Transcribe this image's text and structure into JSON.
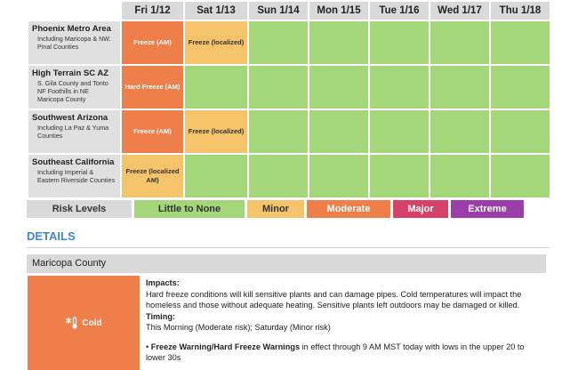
{
  "days": [
    "Fri 1/12",
    "Sat 1/13",
    "Sun 1/14",
    "Mon 1/15",
    "Tue 1/16",
    "Wed 1/17",
    "Thu 1/18"
  ],
  "regions": [
    {
      "name": "Phoenix Metro Area",
      "sub": "Including Maricopa & NW. Pinal Counties",
      "cells": [
        {
          "text": "Freeze (AM)",
          "level": "moderate"
        },
        {
          "text": "Freeze (localized)",
          "level": "minor"
        },
        {
          "text": "",
          "level": "none"
        },
        {
          "text": "",
          "level": "none"
        },
        {
          "text": "",
          "level": "none"
        },
        {
          "text": "",
          "level": "none"
        },
        {
          "text": "",
          "level": "none"
        }
      ]
    },
    {
      "name": "High Terrain SC AZ",
      "sub": "S. Gila County and Tonto NF Foothills in NE Maricopa County",
      "cells": [
        {
          "text": "Hard Freeze (AM)",
          "level": "moderate"
        },
        {
          "text": "",
          "level": "none"
        },
        {
          "text": "",
          "level": "none"
        },
        {
          "text": "",
          "level": "none"
        },
        {
          "text": "",
          "level": "none"
        },
        {
          "text": "",
          "level": "none"
        },
        {
          "text": "",
          "level": "none"
        }
      ]
    },
    {
      "name": "Southwest Arizona",
      "sub": "Including La Paz & Yuma Counties",
      "cells": [
        {
          "text": "Freeze (AM)",
          "level": "moderate"
        },
        {
          "text": "Freeze (localized)",
          "level": "minor"
        },
        {
          "text": "",
          "level": "none"
        },
        {
          "text": "",
          "level": "none"
        },
        {
          "text": "",
          "level": "none"
        },
        {
          "text": "",
          "level": "none"
        },
        {
          "text": "",
          "level": "none"
        }
      ]
    },
    {
      "name": "Southeast California",
      "sub": "Including Imperial & Eastern Riverside Counties",
      "cells": [
        {
          "text": "Freeze (localized AM)",
          "level": "minor"
        },
        {
          "text": "",
          "level": "none"
        },
        {
          "text": "",
          "level": "none"
        },
        {
          "text": "",
          "level": "none"
        },
        {
          "text": "",
          "level": "none"
        },
        {
          "text": "",
          "level": "none"
        },
        {
          "text": "",
          "level": "none"
        }
      ]
    }
  ],
  "legend": {
    "label": "Risk Levels",
    "items": [
      {
        "key": "none",
        "label": "Little to None",
        "color": "#a3d77a"
      },
      {
        "key": "minor",
        "label": "Minor",
        "color": "#f5c36a"
      },
      {
        "key": "moderate",
        "label": "Moderate",
        "color": "#ee7f4a"
      },
      {
        "key": "major",
        "label": "Major",
        "color": "#d6416a"
      },
      {
        "key": "extreme",
        "label": "Extreme",
        "color": "#9b3eaa"
      }
    ]
  },
  "details": {
    "title": "DETAILS",
    "county": "Maricopa County",
    "hazard": {
      "label": "Cold",
      "icon": "cold-thermometer-icon",
      "color": "#ee7f4a"
    },
    "impacts_heading": "Impacts:",
    "impacts_text": "Hard freeze conditions will kill sensitive plants and can damage pipes. Cold temperatures will impact the homeless and those without adequate heating. Sensitive plants left outdoors may be damaged or killed.",
    "timing_heading": "Timing:",
    "timing_text": "This Morning (Moderate risk); Saturday (Minor risk)",
    "warning_bold": "Freeze Warning/Hard Freeze Warnings",
    "warning_text": " in effect through 9 AM MST today with lows in the upper 20 to lower 30s"
  }
}
